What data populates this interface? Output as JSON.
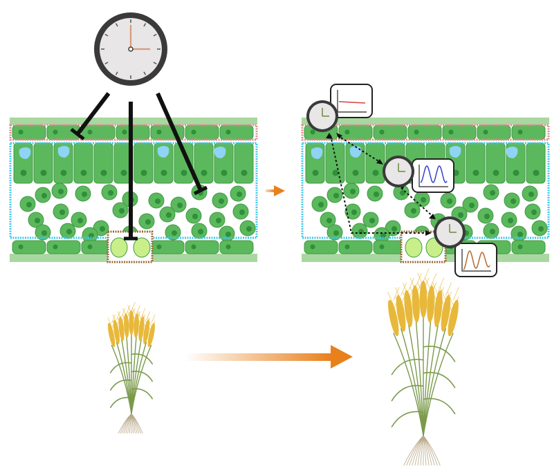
{
  "colors": {
    "leaf_band": "#a8d8a0",
    "cell_fill": "#5cb85c",
    "cell_stroke": "#3f9a45",
    "nucleus": "#2f8f3a",
    "epidermis_box": "#e08a8a",
    "mesophyll_box": "#3ec8e8",
    "stomata_box": "#9a6a3a",
    "guard_cell": "#c8ef8a",
    "chloroplast_vacuole": "#8fd3f5",
    "arrow_orange": "#e8801c",
    "inhibition_line": "#111111",
    "clock_face": "#e8e6e6",
    "clock_rim": "#3a3a3a",
    "clock_hand_orange": "#d89a7a",
    "wheat_head": "#e8b83a",
    "wheat_stem": "#7a9a4a",
    "root": "#b9a88a",
    "trace_red": "#d04040",
    "trace_blue": "#3040d0",
    "trace_brown": "#b06a30"
  },
  "icons": {
    "central_clock": "clock-icon",
    "tissue_clock": "clock-icon",
    "rhythm_plot": "line-chart-icon",
    "plant": "wheat-plant-icon"
  },
  "plots": {
    "epidermis_trace": "flat",
    "mesophyll_trace": "oscillating-high",
    "stomata_trace": "oscillating-damped"
  }
}
